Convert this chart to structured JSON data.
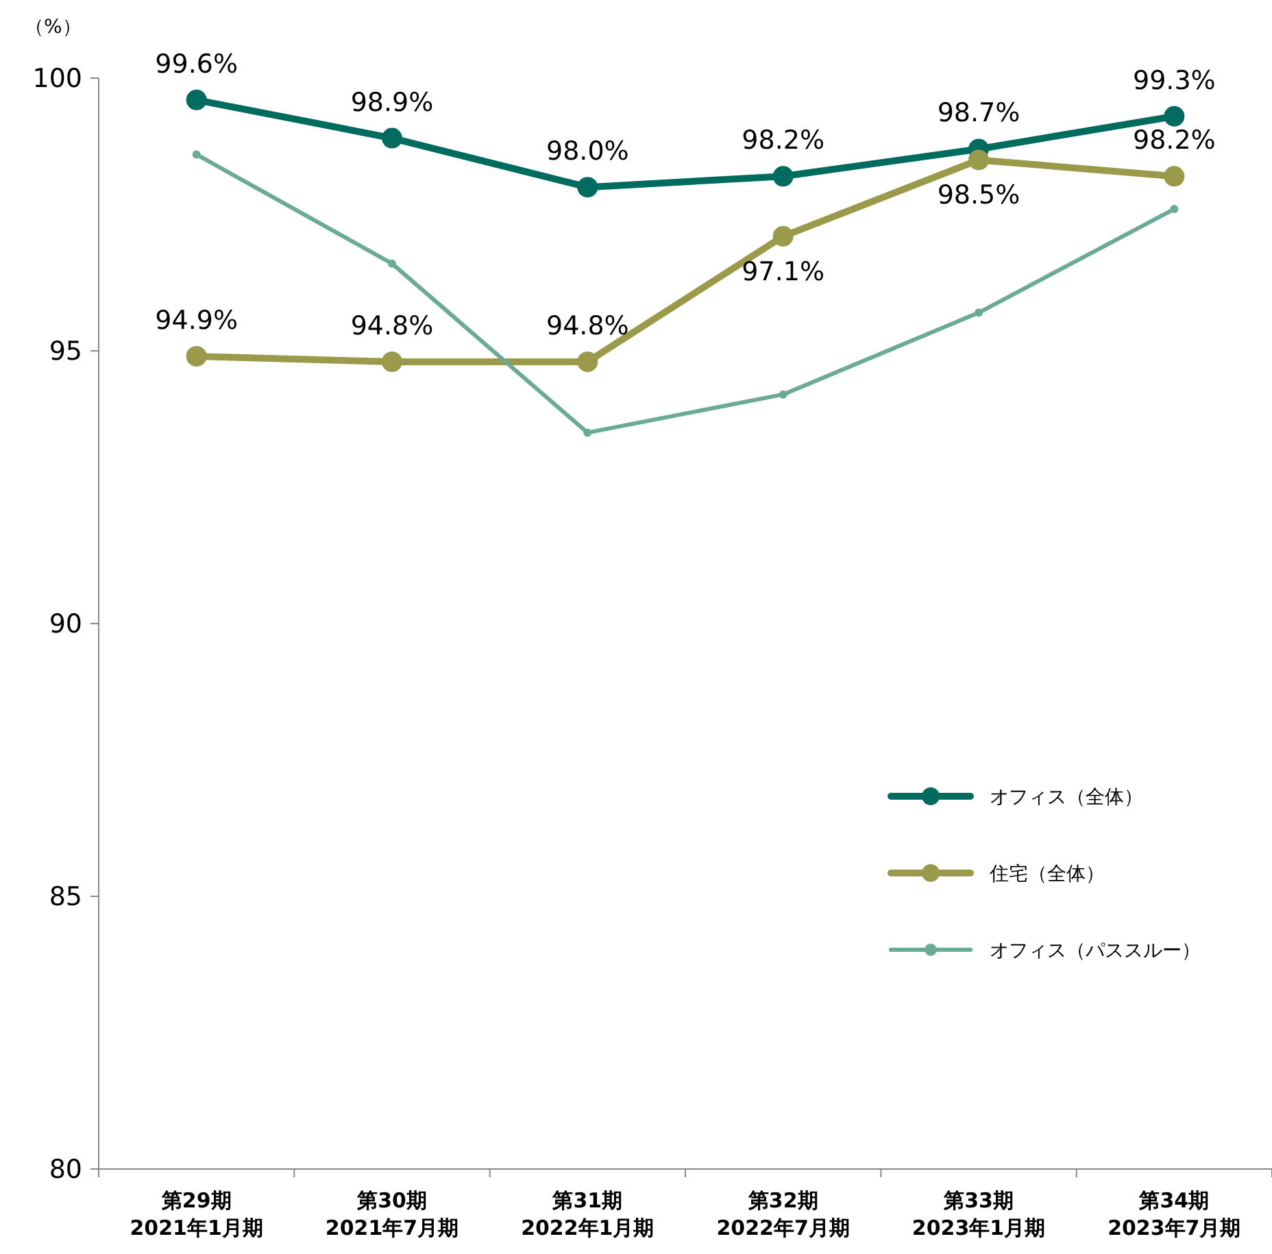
{
  "chart_data": {
    "type": "line",
    "ylabel": "（%）",
    "categories": [
      "第29期\n2021年1月期",
      "第30期\n2021年7月期",
      "第31期\n2022年1月期",
      "第32期\n2022年7月期",
      "第33期\n2023年1月期",
      "第34期\n2023年7月期"
    ],
    "series": [
      {
        "name": "オフィス（全体）",
        "color": "#006b5f",
        "values": [
          99.6,
          98.9,
          98.0,
          98.2,
          98.7,
          99.3
        ],
        "value_labels": [
          "99.6%",
          "98.9%",
          "98.0%",
          "98.2%",
          "98.7%",
          "99.3%"
        ]
      },
      {
        "name": "住宅（全体）",
        "color": "#9a9a4a",
        "values": [
          94.9,
          94.8,
          94.8,
          97.1,
          98.5,
          98.2
        ],
        "value_labels": [
          "94.9%",
          "94.8%",
          "94.8%",
          "97.1%",
          "98.5%",
          "98.2%"
        ]
      },
      {
        "name": "オフィス（パススルー）",
        "color": "#6aaa96",
        "values": [
          98.6,
          96.6,
          93.5,
          94.2,
          95.7,
          97.6
        ]
      }
    ],
    "ylim": [
      80,
      100
    ],
    "yticks": [
      80,
      85,
      90,
      95,
      100
    ],
    "grid": false,
    "legend": "bottom right",
    "marker": "circle",
    "line_style": "solid"
  }
}
